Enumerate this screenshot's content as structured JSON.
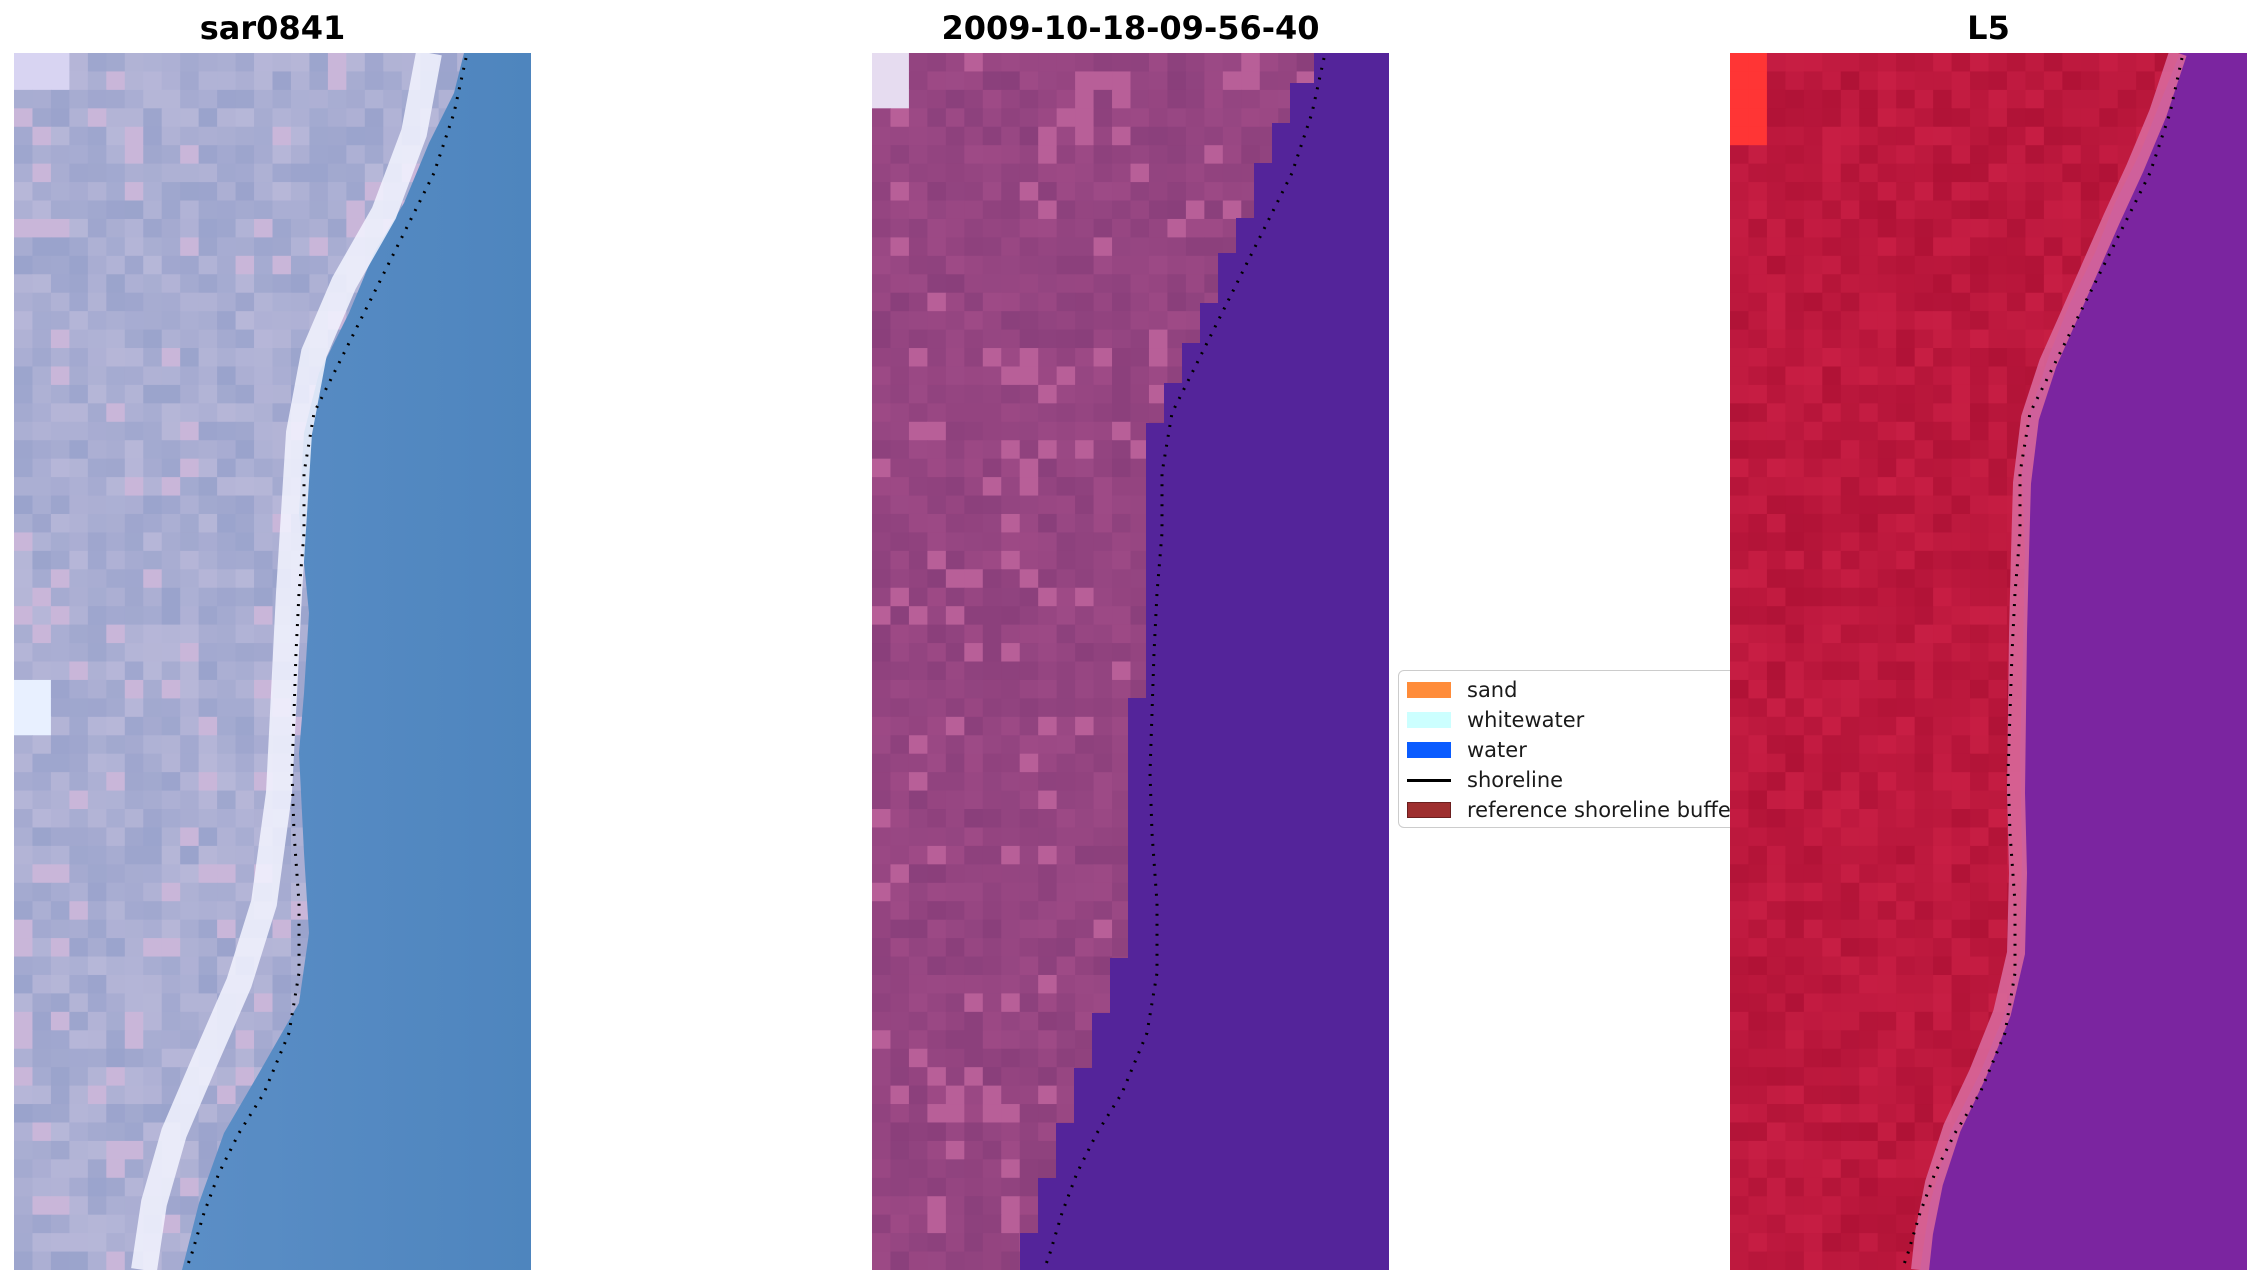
{
  "panels": [
    {
      "title": "sar0841",
      "kind": "rgb-image",
      "palette": {
        "land": "#b7b7d8",
        "land_dark": "#9aa3cc",
        "surf": "#f2f5ff",
        "water": "#5a8cc4",
        "water_alt": "#4f86bf"
      }
    },
    {
      "title": "2009-10-18-09-56-40",
      "kind": "classified-image",
      "palette": {
        "land": "#9e4a86",
        "land_dark": "#8a3f7b",
        "land_light": "#b85f98",
        "water": "#54249a",
        "corner": "#e6dcf0"
      }
    },
    {
      "title": "L5",
      "kind": "false-color-image",
      "palette": {
        "land": "#c81e44",
        "land_dark": "#b01236",
        "edge": "#d65582",
        "water": "#7b25a0",
        "water_dark": "#5c1a90",
        "corner": "#ff3535"
      }
    }
  ],
  "legend": {
    "items": [
      {
        "label": "sand",
        "color": "#ff8c3a",
        "type": "patch"
      },
      {
        "label": "whitewater",
        "color": "#ccffff",
        "type": "patch"
      },
      {
        "label": "water",
        "color": "#0a5cff",
        "type": "patch"
      },
      {
        "label": "shoreline",
        "color": "#000000",
        "type": "line"
      },
      {
        "label": "reference shoreline buffer",
        "color": "#9e2f2f",
        "type": "patch"
      }
    ]
  }
}
